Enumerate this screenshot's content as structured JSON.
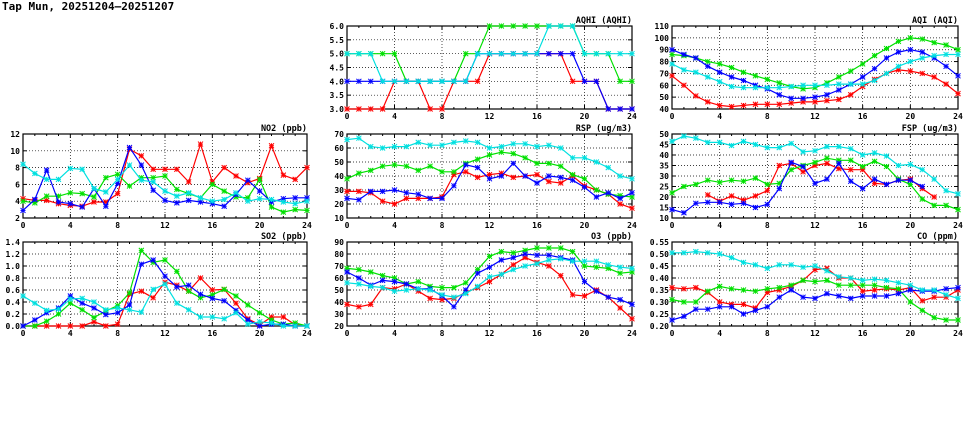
{
  "title": "Tap Mun, 20251204–20251207",
  "colors": {
    "red": "#ff0000",
    "green": "#00e000",
    "blue": "#0000ff",
    "cyan": "#00e0e0"
  },
  "chart_data": [
    {
      "id": "aqhi",
      "type": "line",
      "title": "AQHI (AQHI)",
      "ylim": [
        3,
        6
      ],
      "yticks": [
        "3.0",
        "3.5",
        "4.0",
        "4.5",
        "5.0",
        "5.5",
        "6.0"
      ],
      "xlim": [
        0,
        24
      ],
      "xticks": [
        "0",
        "4",
        "8",
        "12",
        "16",
        "20",
        "24"
      ],
      "grid": true,
      "series": [
        {
          "name": "red",
          "values": [
            3,
            3,
            3,
            3,
            4,
            4,
            4,
            3,
            3,
            4,
            4,
            4,
            5,
            5,
            5,
            5,
            5,
            5,
            5,
            4,
            4,
            4,
            3,
            3,
            3
          ]
        },
        {
          "name": "green",
          "values": [
            5,
            5,
            5,
            5,
            5,
            4,
            4,
            4,
            4,
            4,
            5,
            5,
            6,
            6,
            6,
            6,
            6,
            6,
            6,
            6,
            5,
            5,
            5,
            4,
            4
          ]
        },
        {
          "name": "blue",
          "values": [
            4,
            4,
            4,
            4,
            4,
            4,
            4,
            4,
            4,
            4,
            4,
            5,
            5,
            5,
            5,
            5,
            5,
            5,
            5,
            5,
            4,
            4,
            3,
            3,
            3
          ]
        },
        {
          "name": "cyan",
          "values": [
            5,
            5,
            5,
            4,
            4,
            4,
            4,
            4,
            4,
            4,
            4,
            5,
            5,
            5,
            5,
            5,
            5,
            6,
            6,
            6,
            5,
            5,
            5,
            5,
            5
          ]
        }
      ]
    },
    {
      "id": "aqi",
      "type": "line",
      "title": "AQI (AQI)",
      "ylim": [
        40,
        110
      ],
      "yticks": [
        "40",
        "50",
        "60",
        "70",
        "80",
        "90",
        "100",
        "110"
      ],
      "xlim": [
        0,
        24
      ],
      "xticks": [
        "0",
        "4",
        "8",
        "12",
        "16",
        "20",
        "24"
      ],
      "grid": true,
      "series": [
        {
          "name": "red",
          "values": [
            68,
            60,
            51,
            46,
            43,
            42,
            43,
            44,
            44,
            44,
            45,
            46,
            46,
            47,
            48,
            52,
            59,
            65,
            70,
            73,
            72,
            70,
            67,
            61,
            53
          ]
        },
        {
          "name": "green",
          "values": [
            86,
            85,
            83,
            80,
            78,
            75,
            71,
            68,
            65,
            62,
            59,
            57,
            58,
            62,
            67,
            72,
            78,
            85,
            91,
            97,
            100,
            99,
            96,
            94,
            90
          ]
        },
        {
          "name": "blue",
          "values": [
            90,
            86,
            83,
            76,
            71,
            67,
            64,
            60,
            57,
            52,
            49,
            49,
            50,
            52,
            56,
            61,
            67,
            74,
            83,
            88,
            90,
            88,
            83,
            76,
            68
          ]
        },
        {
          "name": "cyan",
          "values": [
            78,
            73,
            71,
            67,
            63,
            59,
            58,
            58,
            58,
            58,
            59,
            60,
            60,
            60,
            61,
            61,
            61,
            64,
            70,
            76,
            80,
            83,
            85,
            86,
            86
          ]
        }
      ]
    },
    {
      "id": "no2",
      "type": "line",
      "title": "NO2 (ppb)",
      "ylim": [
        2,
        12
      ],
      "yticks": [
        "2",
        "4",
        "6",
        "8",
        "10",
        "12"
      ],
      "xlim": [
        0,
        24
      ],
      "xticks": [
        "0",
        "4",
        "8",
        "12",
        "16",
        "20",
        "24"
      ],
      "grid": true,
      "series": [
        {
          "name": "red",
          "values": [
            4.3,
            4.1,
            4.1,
            3.7,
            3.5,
            3.4,
            3.9,
            3.9,
            4.9,
            10.2,
            9.4,
            7.8,
            7.8,
            7.8,
            6.3,
            10.8,
            6.3,
            8.0,
            7.0,
            6.2,
            6.7,
            10.6,
            7.1,
            6.6,
            8.0
          ]
        },
        {
          "name": "green",
          "values": [
            4.0,
            3.8,
            4.6,
            4.6,
            5.0,
            4.9,
            4.5,
            6.8,
            7.2,
            5.8,
            6.8,
            6.8,
            7.0,
            5.4,
            4.9,
            4.4,
            6.0,
            5.2,
            4.5,
            4.4,
            6.6,
            3.3,
            2.7,
            3.0,
            2.9
          ]
        },
        {
          "name": "blue",
          "values": [
            2.9,
            4.2,
            7.7,
            3.9,
            3.7,
            3.3,
            5.5,
            3.4,
            6.1,
            10.4,
            8.3,
            5.3,
            4.1,
            3.8,
            4.1,
            3.9,
            3.7,
            3.4,
            4.8,
            6.5,
            5.2,
            3.9,
            4.3,
            4.4,
            4.4
          ]
        },
        {
          "name": "cyan",
          "values": [
            8.4,
            7.3,
            6.6,
            6.6,
            7.9,
            7.8,
            5.5,
            5.1,
            6.6,
            8.3,
            6.5,
            6.3,
            5.2,
            4.6,
            5.0,
            4.4,
            4.0,
            4.2,
            5.0,
            4.0,
            4.3,
            4.2,
            3.9,
            3.7,
            4.0
          ]
        }
      ]
    },
    {
      "id": "rsp",
      "type": "line",
      "title": "RSP (ug/m3)",
      "ylim": [
        10,
        70
      ],
      "yticks": [
        "10",
        "20",
        "30",
        "40",
        "50",
        "60",
        "70"
      ],
      "xlim": [
        0,
        24
      ],
      "xticks": [
        "0",
        "4",
        "8",
        "12",
        "16",
        "20",
        "24"
      ],
      "grid": true,
      "series": [
        {
          "name": "red",
          "values": [
            29,
            29,
            28,
            22,
            20,
            24,
            24,
            24,
            25,
            41,
            43,
            39,
            41,
            42,
            39,
            40,
            41,
            36,
            35,
            40,
            33,
            30,
            27,
            20,
            17
          ]
        },
        {
          "name": "green",
          "values": [
            38,
            42,
            44,
            47,
            48,
            47,
            44,
            47,
            43,
            43,
            49,
            52,
            55,
            57,
            56,
            53,
            49,
            49,
            47,
            41,
            38,
            30,
            27,
            26,
            25
          ]
        },
        {
          "name": "blue",
          "values": [
            24,
            23,
            29,
            29,
            30,
            28,
            27,
            24,
            24,
            33,
            48,
            46,
            38,
            40,
            49,
            40,
            35,
            40,
            39,
            37,
            32,
            25,
            28,
            24,
            28
          ]
        },
        {
          "name": "cyan",
          "values": [
            66,
            67,
            61,
            60,
            61,
            61,
            64,
            62,
            62,
            64,
            65,
            64,
            60,
            61,
            63,
            63,
            61,
            62,
            60,
            53,
            53,
            50,
            46,
            40,
            38
          ]
        }
      ]
    },
    {
      "id": "fsp",
      "type": "line",
      "title": "FSP (ug/m3)",
      "ylim": [
        10,
        50
      ],
      "yticks": [
        "10",
        "15",
        "20",
        "25",
        "30",
        "35",
        "40",
        "45",
        "50"
      ],
      "xlim": [
        0,
        24
      ],
      "xticks": [
        "0",
        "4",
        "8",
        "12",
        "16",
        "20",
        "24"
      ],
      "grid": true,
      "series": [
        {
          "name": "red",
          "values": [
            null,
            null,
            null,
            21,
            18,
            20.5,
            18.5,
            20.5,
            23,
            35,
            36,
            32,
            35,
            36,
            33.5,
            33,
            33,
            26.5,
            26,
            28,
            28.5,
            24,
            20,
            null,
            null
          ]
        },
        {
          "name": "green",
          "values": [
            22,
            25,
            26,
            28,
            27,
            28,
            27.5,
            29,
            26,
            26.5,
            33,
            35,
            36.5,
            38.5,
            37.5,
            37.5,
            34.5,
            37,
            34.5,
            28.5,
            26,
            19,
            16,
            16,
            14
          ]
        },
        {
          "name": "blue",
          "values": [
            14,
            12.5,
            17,
            17.5,
            17.5,
            16.5,
            17,
            15,
            16.5,
            24,
            36.5,
            34.5,
            26.5,
            28.5,
            36,
            27.5,
            24,
            28.5,
            26,
            28,
            28,
            25,
            null,
            null,
            null
          ]
        },
        {
          "name": "cyan",
          "values": [
            46.5,
            49,
            48,
            46,
            46,
            44.5,
            46.5,
            45,
            43.5,
            43.5,
            45.5,
            41.5,
            42,
            44,
            44,
            43,
            40,
            41,
            39.5,
            35,
            35.5,
            33,
            28.5,
            23,
            21.5
          ]
        }
      ]
    },
    {
      "id": "so2",
      "type": "line",
      "title": "SO2 (ppb)",
      "ylim": [
        0,
        1.4
      ],
      "yticks": [
        "0.0",
        "0.2",
        "0.4",
        "0.6",
        "0.8",
        "1.0",
        "1.2",
        "1.4"
      ],
      "xlim": [
        0,
        24
      ],
      "xticks": [
        "0",
        "4",
        "8",
        "12",
        "16",
        "20",
        "24"
      ],
      "grid": true,
      "series": [
        {
          "name": "red",
          "values": [
            0,
            0,
            0,
            0,
            0,
            0,
            0.07,
            0,
            0.03,
            0.53,
            0.58,
            0.47,
            0.73,
            0.68,
            0.58,
            0.8,
            0.6,
            0.61,
            0.38,
            0.12,
            0.02,
            0.15,
            0.15,
            0.02,
            0
          ]
        },
        {
          "name": "green",
          "values": [
            0,
            0,
            0.08,
            0.2,
            0.38,
            0.27,
            0.14,
            0.25,
            0.34,
            0.55,
            1.26,
            1.06,
            1.1,
            0.91,
            0.58,
            0.47,
            0.52,
            0.61,
            0.5,
            0.35,
            0.22,
            0.1,
            0.03,
            0.05,
            0
          ]
        },
        {
          "name": "blue",
          "values": [
            0,
            0.1,
            0.22,
            0.3,
            0.5,
            0.38,
            0.3,
            0.19,
            0.22,
            0.35,
            1.03,
            1.1,
            0.83,
            0.65,
            0.68,
            0.53,
            0.46,
            0.42,
            0.26,
            0.1,
            0,
            0.03,
            0.03,
            0,
            0
          ]
        },
        {
          "name": "cyan",
          "values": [
            0.5,
            0.38,
            0.26,
            0.28,
            0.45,
            0.46,
            0.4,
            0.27,
            0.3,
            0.27,
            0.23,
            0.61,
            0.7,
            0.38,
            0.27,
            0.15,
            0.15,
            0.12,
            0.22,
            0.03,
            0.07,
            0.05,
            0,
            0,
            0
          ]
        }
      ]
    },
    {
      "id": "o3",
      "type": "line",
      "title": "O3 (ppb)",
      "ylim": [
        20,
        90
      ],
      "yticks": [
        "20",
        "30",
        "40",
        "50",
        "60",
        "70",
        "80",
        "90"
      ],
      "xlim": [
        0,
        24
      ],
      "xticks": [
        "0",
        "4",
        "8",
        "12",
        "16",
        "20",
        "24"
      ],
      "grid": true,
      "series": [
        {
          "name": "red",
          "values": [
            38,
            36,
            38,
            52,
            51,
            55,
            49,
            43,
            42,
            43,
            48,
            52,
            57,
            63,
            71,
            77,
            73,
            70,
            62,
            46,
            45,
            50,
            44,
            35,
            26
          ]
        },
        {
          "name": "green",
          "values": [
            68,
            67,
            65,
            62,
            60,
            55,
            57,
            53,
            52,
            52,
            56,
            67,
            78,
            82,
            81,
            83,
            85,
            85,
            85,
            82,
            70,
            69,
            68,
            64,
            65
          ]
        },
        {
          "name": "blue",
          "values": [
            65,
            60,
            54,
            58,
            57,
            55,
            51,
            51,
            45,
            36,
            50,
            64,
            69,
            75,
            77,
            80,
            79,
            79,
            77,
            75,
            57,
            49,
            44,
            42,
            38
          ]
        },
        {
          "name": "cyan",
          "values": [
            56,
            55,
            53,
            52,
            49,
            50,
            51,
            50,
            46,
            44,
            47,
            53,
            61,
            63,
            67,
            70,
            72,
            75,
            76,
            74,
            74,
            74,
            71,
            69,
            68
          ]
        }
      ]
    },
    {
      "id": "co",
      "type": "line",
      "title": "CO (ppm)",
      "ylim": [
        0.2,
        0.55
      ],
      "yticks": [
        "0.20",
        "0.25",
        "0.30",
        "0.35",
        "0.40",
        "0.45",
        "0.50",
        "0.55"
      ],
      "xlim": [
        0,
        24
      ],
      "xticks": [
        "0",
        "4",
        "8",
        "12",
        "16",
        "20",
        "24"
      ],
      "grid": true,
      "series": [
        {
          "name": "red",
          "values": [
            0.36,
            0.355,
            0.36,
            0.34,
            0.3,
            0.29,
            0.29,
            0.275,
            0.34,
            0.35,
            0.365,
            0.39,
            0.435,
            0.44,
            0.4,
            0.4,
            0.345,
            0.35,
            0.355,
            0.35,
            0.36,
            0.305,
            0.32,
            0.32,
            0.35
          ]
        },
        {
          "name": "green",
          "values": [
            0.31,
            0.3,
            0.3,
            0.345,
            0.365,
            0.355,
            0.35,
            0.345,
            0.355,
            0.36,
            0.37,
            0.39,
            0.385,
            0.39,
            0.37,
            0.37,
            0.37,
            0.37,
            0.36,
            0.355,
            0.3,
            0.265,
            0.235,
            0.225,
            0.225
          ]
        },
        {
          "name": "blue",
          "values": [
            0.225,
            0.24,
            0.27,
            0.27,
            0.28,
            0.28,
            0.25,
            0.265,
            0.28,
            0.32,
            0.35,
            0.32,
            0.315,
            0.335,
            0.325,
            0.315,
            0.325,
            0.325,
            0.325,
            0.335,
            0.35,
            0.345,
            0.345,
            0.355,
            0.36
          ]
        },
        {
          "name": "cyan",
          "values": [
            0.505,
            0.505,
            0.51,
            0.505,
            0.5,
            0.485,
            0.465,
            0.455,
            0.44,
            0.455,
            0.455,
            0.445,
            0.45,
            0.43,
            0.405,
            0.4,
            0.39,
            0.395,
            0.39,
            0.38,
            0.37,
            0.35,
            0.35,
            0.33,
            0.315
          ]
        }
      ]
    }
  ]
}
